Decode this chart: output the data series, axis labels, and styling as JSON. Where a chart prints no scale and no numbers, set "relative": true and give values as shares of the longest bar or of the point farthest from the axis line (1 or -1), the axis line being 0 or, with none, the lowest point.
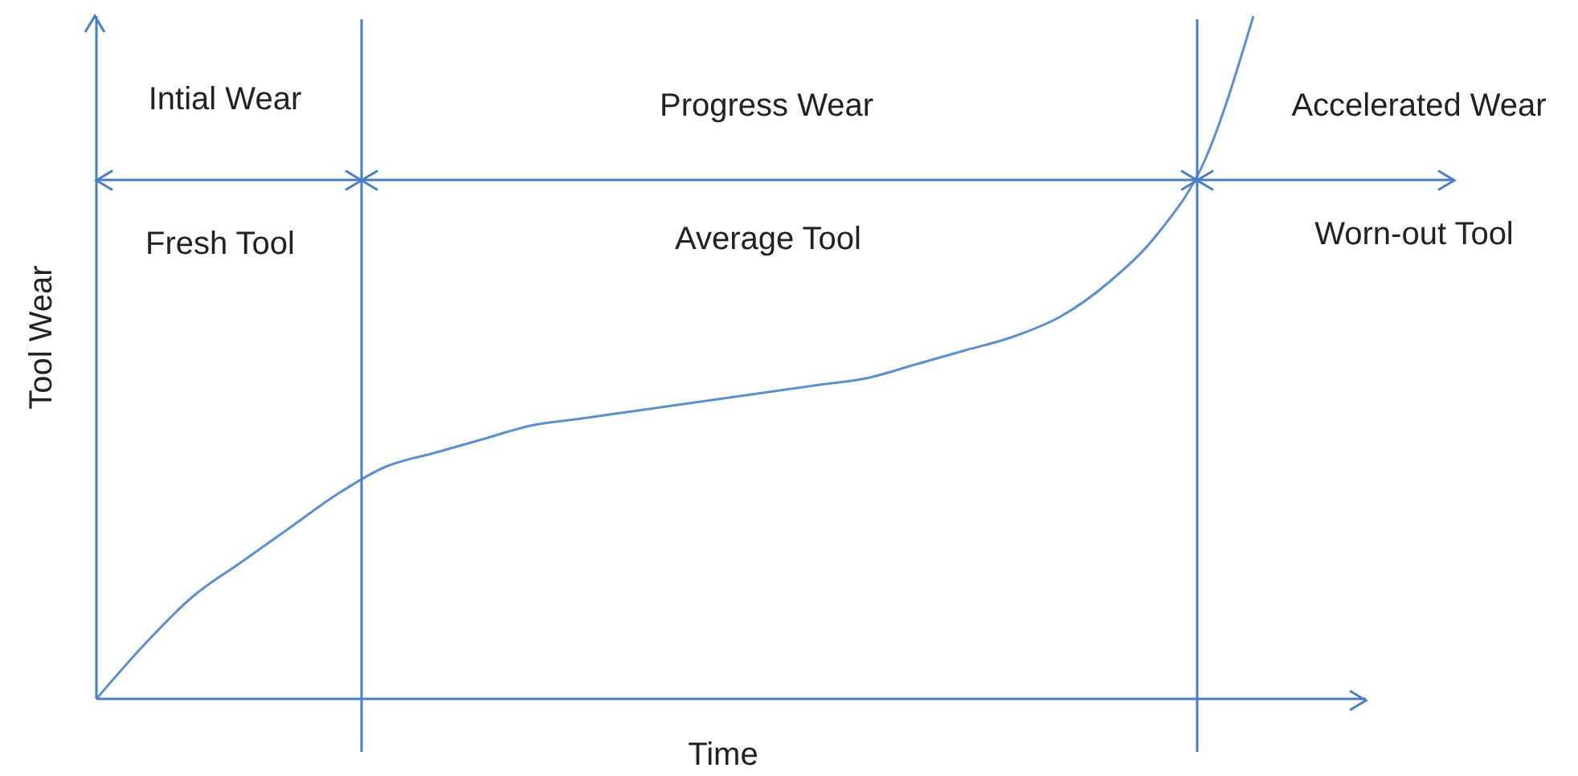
{
  "chart_data": {
    "type": "line",
    "relative": true,
    "xlabel": "Time",
    "ylabel": "Tool Wear",
    "categories": [
      null,
      null,
      null,
      null,
      null,
      null,
      null,
      null,
      null,
      null,
      null,
      null,
      null,
      null,
      null,
      null,
      null,
      null,
      null,
      null,
      null,
      null,
      null,
      null,
      null,
      null,
      null
    ],
    "series": [
      {
        "color": "#5b8fd0",
        "values": [
          0,
          0.08,
          0.15,
          0.2,
          0.25,
          0.3,
          0.34,
          0.36,
          0.38,
          0.4,
          0.41,
          0.42,
          0.43,
          0.44,
          0.45,
          0.46,
          0.47,
          0.49,
          0.51,
          0.53,
          0.56,
          0.61,
          0.68,
          0.79,
          1,
          null,
          null
        ]
      }
    ],
    "ref_lines": [
      {
        "axis": "y",
        "value": 0.76,
        "color": "#4a7ec4"
      }
    ],
    "annotations": [
      "Intial Wear",
      "Progress Wear",
      "Accelerated Wear",
      "Fresh Tool",
      "Average Tool",
      "Worn-out Tool"
    ]
  }
}
